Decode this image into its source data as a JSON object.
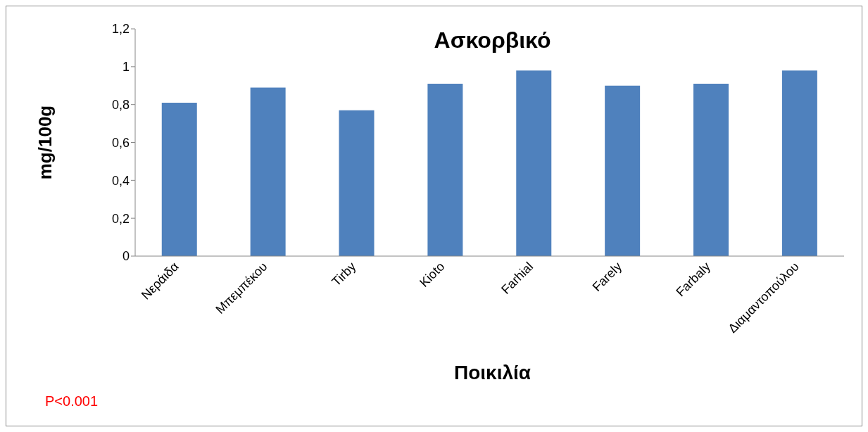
{
  "chart_data": {
    "type": "bar",
    "title": "Ασκορβικό",
    "xlabel": "Ποικιλία",
    "ylabel": "mg/100g",
    "categories": [
      "Νεράιδα",
      "Μπεμπέκου",
      "Tirby",
      "Kioto",
      "Farhial",
      "Farely",
      "Farbaly",
      "Διαμαντοπούλου"
    ],
    "values": [
      0.81,
      0.89,
      0.77,
      0.91,
      0.98,
      0.9,
      0.91,
      0.98
    ],
    "color": "#4f81bd",
    "ylim": [
      0,
      1.2
    ],
    "yticks": [
      0,
      {
        "value": 0.2,
        "label": "0,2"
      },
      {
        "value": 0.4,
        "label": "0,4"
      },
      {
        "value": 0.6,
        "label": "0,6"
      },
      {
        "value": 0.8,
        "label": "0,8"
      },
      1,
      {
        "value": 1.2,
        "label": "1,2"
      }
    ],
    "grid": false,
    "legend": false,
    "annotations": [
      "P<0.001"
    ]
  }
}
